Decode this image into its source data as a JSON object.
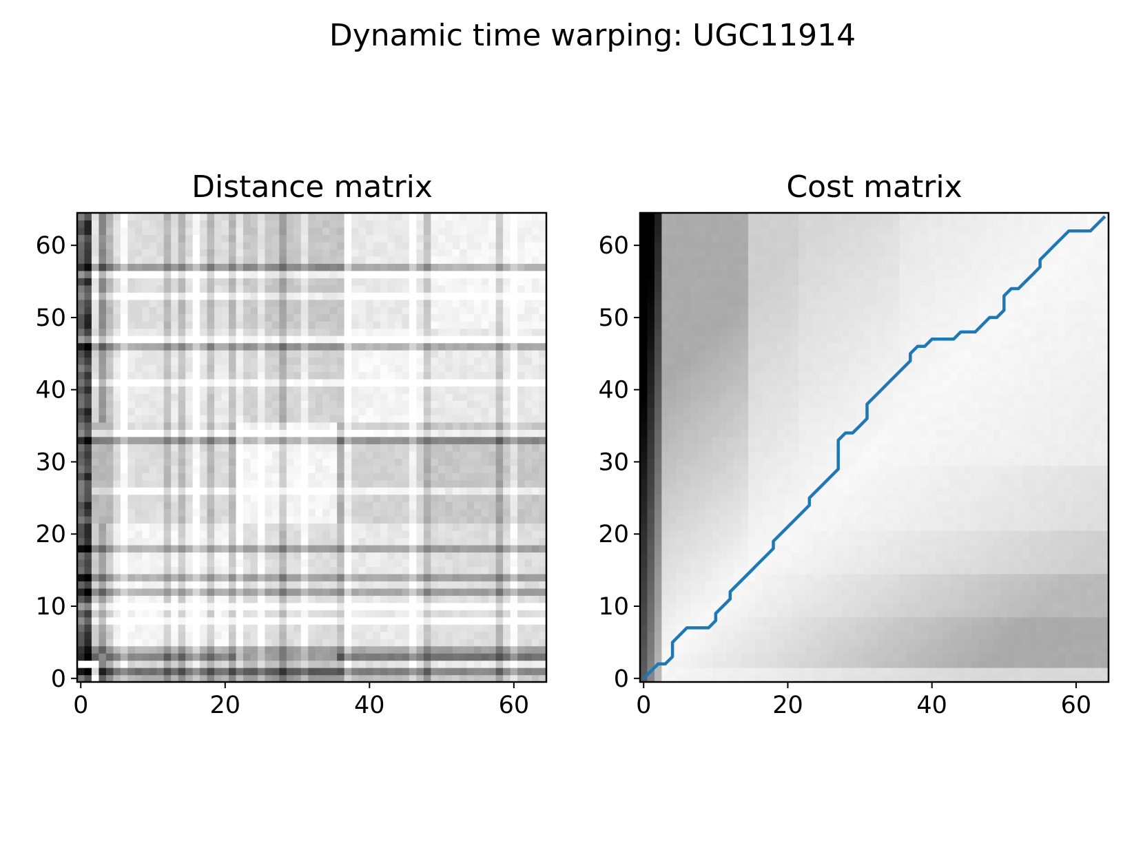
{
  "figure": {
    "suptitle": "Dynamic time warping: UGC11914"
  },
  "colors": {
    "path": "#1f77b4",
    "cmap": "gray_r"
  },
  "chart_data": [
    {
      "type": "heatmap",
      "title": "Distance matrix",
      "size": 65,
      "origin": "lower",
      "colormap": "gray_r",
      "xlim": [
        -0.5,
        64.5
      ],
      "ylim": [
        -0.5,
        64.5
      ],
      "xticks": [
        0,
        20,
        40,
        60
      ],
      "yticks": [
        0,
        10,
        20,
        30,
        40,
        50,
        60
      ],
      "xtick_labels": [
        "0",
        "20",
        "40",
        "60"
      ],
      "ytick_labels": [
        "0",
        "10",
        "20",
        "30",
        "40",
        "50",
        "60"
      ],
      "block_boundaries": [
        2,
        3,
        21,
        35,
        48,
        64
      ],
      "dark_rows": [
        1,
        3,
        4,
        12,
        14,
        18,
        33,
        46,
        57
      ],
      "dark_cols": [
        1,
        3,
        4,
        12,
        14,
        18,
        21,
        28,
        36,
        48,
        58
      ],
      "light_rows": [
        2,
        8,
        10,
        26,
        34,
        41,
        47,
        53,
        56
      ],
      "light_cols": [
        2,
        6,
        16,
        22,
        25,
        31,
        37,
        46,
        60
      ]
    },
    {
      "type": "heatmap",
      "title": "Cost matrix",
      "size": 65,
      "origin": "lower",
      "colormap": "gray_r",
      "xlim": [
        -0.5,
        64.5
      ],
      "ylim": [
        -0.5,
        64.5
      ],
      "xticks": [
        0,
        20,
        40,
        60
      ],
      "yticks": [
        0,
        10,
        20,
        30,
        40,
        50,
        60
      ],
      "xtick_labels": [
        "0",
        "20",
        "40",
        "60"
      ],
      "ytick_labels": [
        "0",
        "10",
        "20",
        "30",
        "40",
        "50",
        "60"
      ],
      "warping_path": {
        "x": [
          0,
          1,
          2,
          3,
          4,
          4,
          5,
          6,
          7,
          8,
          9,
          10,
          10,
          11,
          12,
          12,
          13,
          14,
          15,
          16,
          17,
          18,
          18,
          19,
          20,
          21,
          22,
          23,
          23,
          24,
          25,
          26,
          27,
          27,
          28,
          29,
          30,
          31,
          31,
          32,
          33,
          34,
          35,
          36,
          37,
          37,
          38,
          39,
          40,
          41,
          42,
          43,
          44,
          45,
          46,
          47,
          48,
          49,
          50,
          50,
          51,
          52,
          53,
          54,
          55,
          55,
          56,
          57,
          58,
          59,
          60,
          61,
          62,
          63,
          64
        ],
        "y": [
          0,
          1,
          2,
          2,
          3,
          5,
          6,
          7,
          7,
          7,
          7,
          8,
          9,
          10,
          11,
          12,
          13,
          14,
          15,
          16,
          17,
          18,
          19,
          20,
          21,
          22,
          23,
          24,
          25,
          26,
          27,
          28,
          29,
          33,
          34,
          34,
          35,
          36,
          38,
          39,
          40,
          41,
          42,
          43,
          44,
          45,
          46,
          46,
          47,
          47,
          47,
          47,
          48,
          48,
          48,
          49,
          50,
          50,
          51,
          53,
          54,
          54,
          55,
          56,
          57,
          58,
          59,
          60,
          61,
          62,
          62,
          62,
          62,
          63,
          64
        ]
      }
    }
  ]
}
